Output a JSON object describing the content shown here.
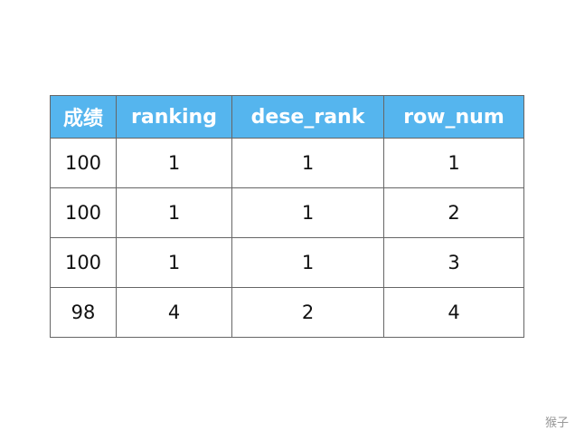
{
  "table": {
    "headers": [
      "成绩",
      "ranking",
      "dese_rank",
      "row_num"
    ],
    "rows": [
      [
        "100",
        "1",
        "1",
        "1"
      ],
      [
        "100",
        "1",
        "1",
        "2"
      ],
      [
        "100",
        "1",
        "1",
        "3"
      ],
      [
        "98",
        "4",
        "2",
        "4"
      ]
    ]
  },
  "watermark": "猴子",
  "colors": {
    "header_bg": "#55b5ee",
    "header_text": "#ffffff"
  }
}
